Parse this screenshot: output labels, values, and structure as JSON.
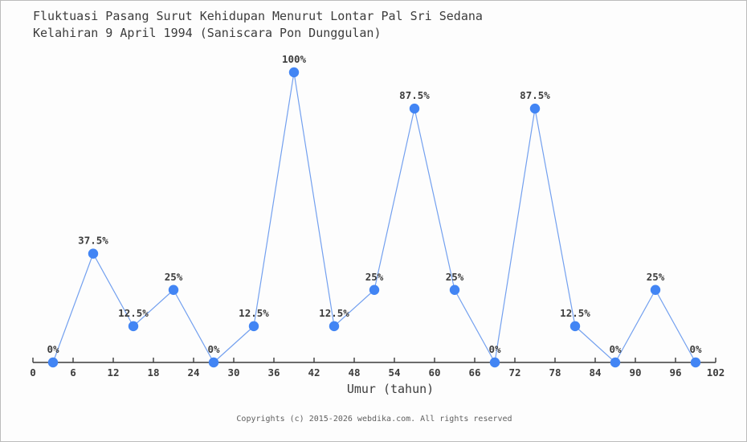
{
  "chart_data": {
    "type": "line",
    "title": "Fluktuasi Pasang Surut Kehidupan Menurut Lontar Pal Sri Sedana",
    "subtitle": "Kelahiran 9 April 1994 (Saniscara Pon Dunggulan)",
    "xlabel": "Umur (tahun)",
    "x": [
      3,
      9,
      15,
      21,
      27,
      33,
      39,
      45,
      51,
      57,
      63,
      69,
      75,
      81,
      87,
      93,
      99
    ],
    "values": [
      0,
      37.5,
      12.5,
      25,
      0,
      12.5,
      100,
      12.5,
      25,
      87.5,
      25,
      0,
      87.5,
      12.5,
      0,
      25,
      0
    ],
    "point_labels": [
      "0%",
      "37.5%",
      "12.5%",
      "25%",
      "0%",
      "12.5%",
      "100%",
      "12.5%",
      "25%",
      "87.5%",
      "25%",
      "0%",
      "87.5%",
      "12.5%",
      "0%",
      "25%",
      "0%"
    ],
    "x_ticks": [
      0,
      6,
      12,
      18,
      24,
      30,
      36,
      42,
      48,
      54,
      60,
      66,
      72,
      78,
      84,
      90,
      96,
      102
    ],
    "xlim": [
      0,
      102
    ],
    "ylim": [
      0,
      100
    ],
    "grid": false,
    "legend": "none",
    "colors": {
      "marker": "#4285f4",
      "line": "#73a0ef",
      "axis": "#3c3c3c",
      "tick_label": "#3c3c3c",
      "point_label": "#3c3c3c"
    }
  },
  "footer": {
    "copyright": "Copyrights (c) 2015-2026 webdika.com. All rights reserved"
  }
}
